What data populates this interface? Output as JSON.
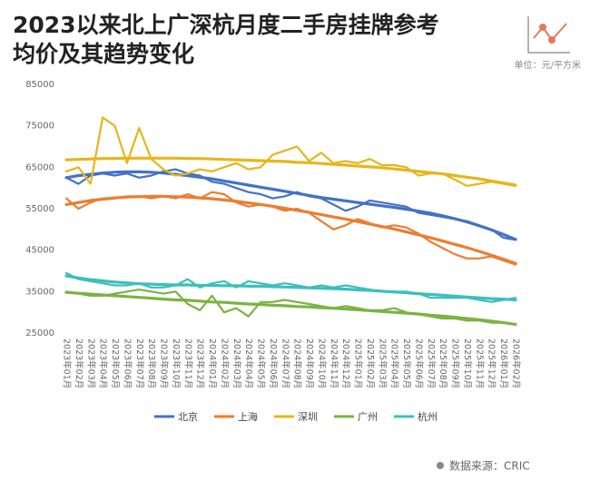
{
  "chart_data": {
    "type": "line",
    "title": [
      "2023以来北上广深杭月度二手房挂牌参考",
      "均价及其趋势变化"
    ],
    "unit": "单位：元/平方米",
    "source": "数据来源：CRIC",
    "categories": [
      "2023年01月",
      "2023年02月",
      "2023年03月",
      "2023年04月",
      "2023年05月",
      "2023年06月",
      "2023年07月",
      "2023年08月",
      "2023年09月",
      "2023年10月",
      "2023年11月",
      "2023年12月",
      "2024年01月",
      "2024年02月",
      "2024年03月",
      "2024年04月",
      "2024年05月",
      "2024年06月",
      "2024年07月",
      "2024年08月",
      "2024年09月",
      "2024年10月",
      "2024年11月",
      "2024年12月",
      "2025年01月",
      "2025年02月",
      "2025年03月",
      "2025年04月",
      "2025年05月",
      "2025年06月",
      "2025年07月",
      "2025年08月",
      "2025年09月",
      "2025年10月",
      "2025年11月",
      "2025年12月",
      "2026年01月",
      "2026年02月"
    ],
    "ylim": [
      25000,
      85000
    ],
    "yticks": [
      25000,
      35000,
      45000,
      55000,
      65000,
      75000,
      85000
    ],
    "series": [
      {
        "name": "北京",
        "color": "#4472c4",
        "values": [
          62500,
          61000,
          63000,
          63500,
          63000,
          63500,
          62500,
          63000,
          64000,
          64500,
          63500,
          63000,
          61500,
          61000,
          60000,
          59000,
          58500,
          57500,
          58000,
          59000,
          58000,
          57500,
          56000,
          54500,
          55500,
          57000,
          56500,
          56000,
          55500,
          54000,
          53500,
          53000,
          52500,
          52000,
          51000,
          50000,
          48000,
          47500
        ],
        "trend": [
          62500,
          63000,
          63300,
          63600,
          63800,
          63900,
          63900,
          63800,
          63600,
          63300,
          63000,
          62600,
          62200,
          61700,
          61200,
          60700,
          60200,
          59700,
          59200,
          58700,
          58200,
          57700,
          57300,
          56900,
          56500,
          56100,
          55700,
          55300,
          54900,
          54400,
          53900,
          53300,
          52600,
          51800,
          50900,
          49900,
          48800,
          47600
        ]
      },
      {
        "name": "上海",
        "color": "#ed7d31",
        "values": [
          57500,
          55000,
          56500,
          57500,
          57500,
          58000,
          58000,
          57500,
          58000,
          57500,
          58500,
          57500,
          59000,
          58500,
          56500,
          55500,
          56000,
          55500,
          54500,
          55000,
          54000,
          52000,
          50000,
          51000,
          52500,
          51500,
          50500,
          51000,
          50500,
          49000,
          47000,
          45500,
          44000,
          43000,
          43000,
          43500,
          42500,
          41500
        ],
        "trend": [
          56000,
          56500,
          57000,
          57300,
          57600,
          57800,
          57900,
          58000,
          58000,
          57900,
          57800,
          57600,
          57400,
          57100,
          56800,
          56400,
          56000,
          55600,
          55100,
          54600,
          54100,
          53600,
          53000,
          52500,
          51900,
          51300,
          50700,
          50100,
          49400,
          48700,
          48000,
          47200,
          46400,
          45600,
          44700,
          43800,
          42800,
          41800
        ]
      },
      {
        "name": "深圳",
        "color": "#e6b619",
        "values": [
          64000,
          65000,
          61000,
          77000,
          75000,
          66000,
          74500,
          67000,
          64500,
          63000,
          63500,
          64500,
          64000,
          65000,
          66000,
          64500,
          65000,
          68000,
          69000,
          70000,
          66500,
          68500,
          66000,
          66500,
          66000,
          67000,
          65500,
          65500,
          65000,
          63000,
          63500,
          63500,
          62000,
          60500,
          61000,
          61500,
          61000,
          60500
        ],
        "trend": [
          66800,
          66900,
          67000,
          67100,
          67100,
          67200,
          67200,
          67200,
          67200,
          67200,
          67100,
          67100,
          67000,
          66900,
          66800,
          66700,
          66600,
          66500,
          66400,
          66200,
          66100,
          65900,
          65700,
          65500,
          65300,
          65100,
          64900,
          64600,
          64300,
          64000,
          63700,
          63400,
          63000,
          62600,
          62200,
          61700,
          61200,
          60700
        ]
      },
      {
        "name": "广州",
        "color": "#7cb342",
        "values": [
          35000,
          34500,
          34000,
          34000,
          34500,
          35000,
          35500,
          35000,
          34500,
          35000,
          32000,
          30500,
          34000,
          30000,
          31000,
          29000,
          32500,
          32500,
          33000,
          32500,
          32000,
          31500,
          31000,
          31500,
          31000,
          30500,
          30500,
          31000,
          30000,
          29500,
          29000,
          28500,
          28500,
          28000,
          28000,
          27500,
          27500,
          27000
        ],
        "trend": [
          34800,
          34600,
          34400,
          34200,
          34000,
          33800,
          33600,
          33400,
          33200,
          33000,
          32900,
          32700,
          32500,
          32400,
          32200,
          32000,
          31900,
          31700,
          31600,
          31400,
          31300,
          31100,
          31000,
          30800,
          30600,
          30400,
          30200,
          30000,
          29800,
          29600,
          29300,
          29100,
          28800,
          28500,
          28200,
          27900,
          27500,
          27100
        ]
      },
      {
        "name": "杭州",
        "color": "#3dbfbd",
        "values": [
          39500,
          38000,
          37500,
          37000,
          36500,
          36500,
          37000,
          36000,
          36000,
          36500,
          38000,
          36000,
          37000,
          37500,
          36000,
          37500,
          37000,
          36500,
          37000,
          36500,
          36000,
          36500,
          36000,
          36500,
          36000,
          35500,
          35000,
          35000,
          35000,
          34500,
          33500,
          33500,
          33500,
          33500,
          33000,
          32500,
          33000,
          33500
        ],
        "trend": [
          38800,
          38300,
          37900,
          37600,
          37300,
          37100,
          36900,
          36800,
          36700,
          36600,
          36600,
          36500,
          36500,
          36400,
          36400,
          36300,
          36300,
          36200,
          36100,
          36000,
          35900,
          35800,
          35700,
          35600,
          35400,
          35300,
          35100,
          34900,
          34700,
          34500,
          34300,
          34100,
          33900,
          33700,
          33500,
          33300,
          33200,
          33000
        ]
      }
    ]
  }
}
